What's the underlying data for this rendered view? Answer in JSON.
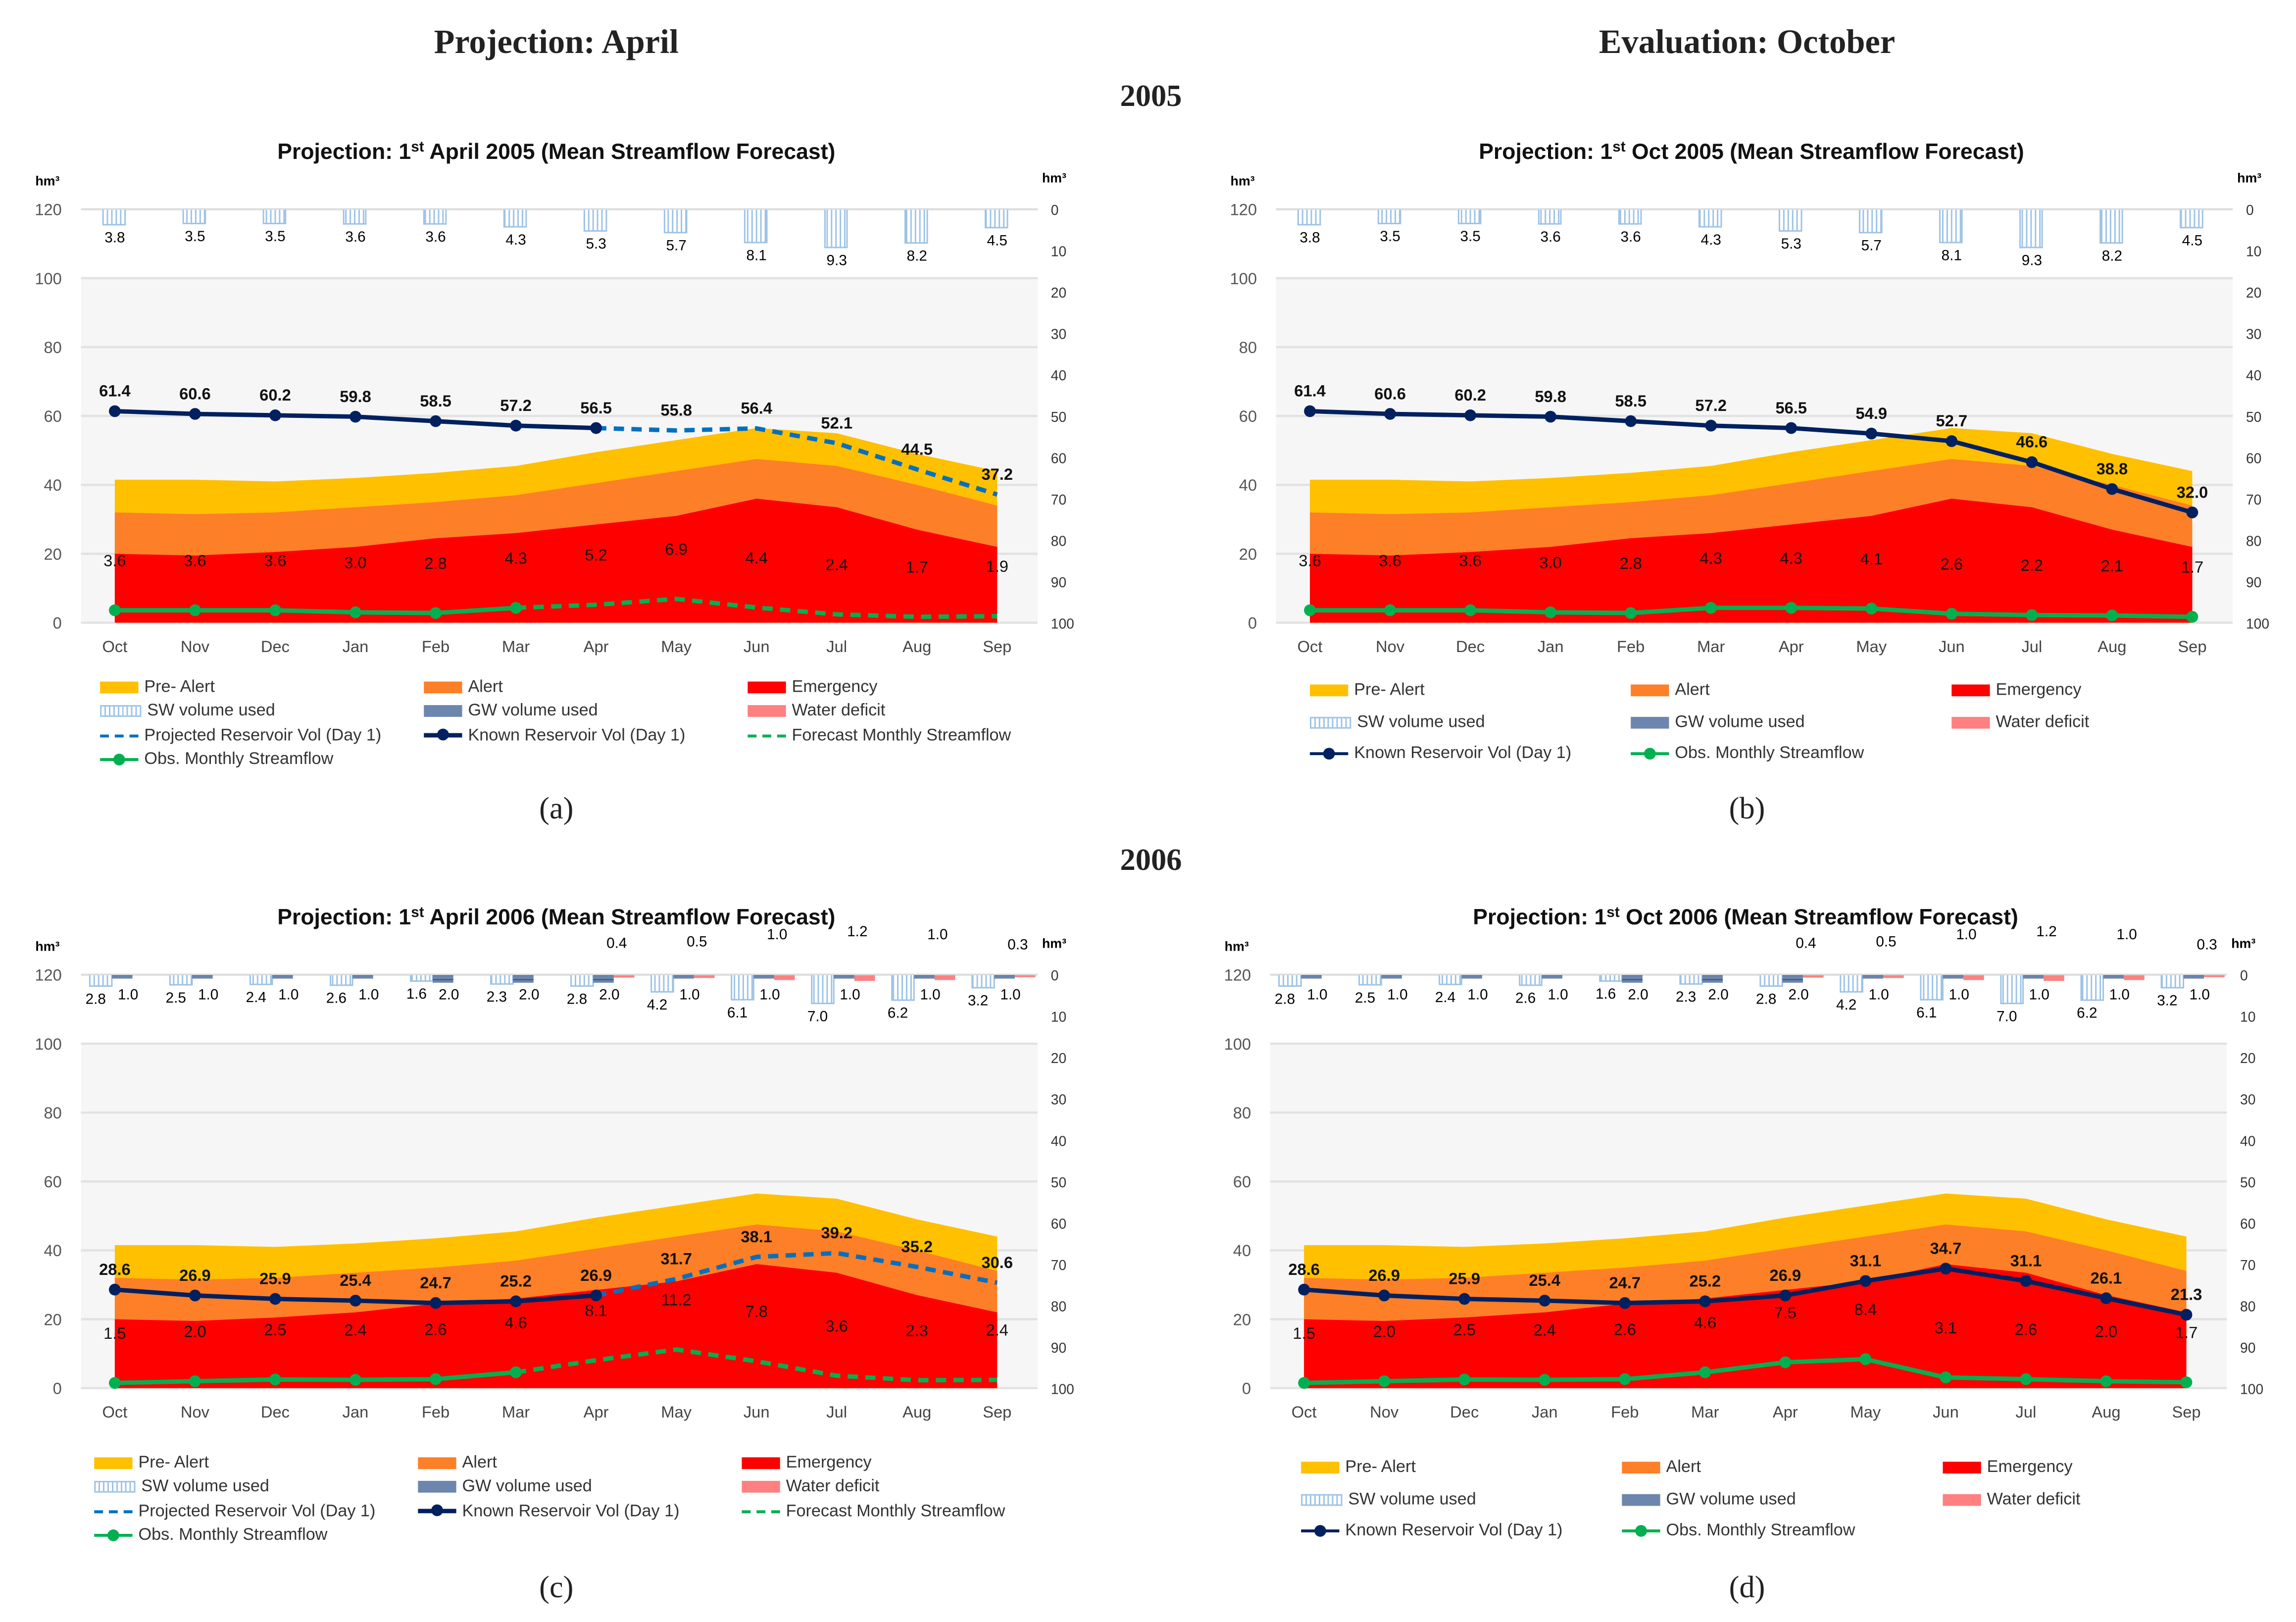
{
  "headings": {
    "left": "Projection: April",
    "right": "Evaluation: October",
    "year1": "2005",
    "year2": "2006"
  },
  "colors": {
    "pre_alert": "#ffc000",
    "alert": "#fd7f27",
    "emergency": "#ff0000",
    "sw": "#9dc3e6",
    "gw": "#6d86ad",
    "deficit": "#ff8080",
    "known_res": "#002060",
    "proj_res": "#0070c0",
    "streamflow": "#00b050"
  },
  "chart_data": [
    {
      "type": "area+line+bar",
      "caption": "(a)",
      "title_prefix": "Projection: 1",
      "title_sup": "st",
      "title_suffix": " April 2005 (Mean Streamflow Forecast)",
      "left_unit": "hm³",
      "right_unit": "hm³",
      "categories": [
        "Oct",
        "Nov",
        "Dec",
        "Jan",
        "Feb",
        "Mar",
        "Apr",
        "May",
        "Jun",
        "Jul",
        "Aug",
        "Sep"
      ],
      "left_ylim": [
        0,
        120
      ],
      "left_ticks": [
        "0",
        "20",
        "40",
        "60",
        "80",
        "100",
        "120"
      ],
      "right_ylim": [
        0,
        100
      ],
      "right_ticks": [
        "0",
        "10",
        "20",
        "30",
        "40",
        "50",
        "60",
        "70",
        "80",
        "90",
        "100"
      ],
      "zones": {
        "emergency": [
          20,
          19.5,
          20.5,
          22,
          24.5,
          26,
          28.5,
          31,
          36,
          33.5,
          27,
          22
        ],
        "alert": [
          32,
          31.5,
          32,
          33.5,
          35,
          37,
          40.5,
          44,
          47.5,
          45.5,
          40,
          34
        ],
        "pre_alert": [
          41.5,
          41.5,
          41,
          42,
          43.5,
          45.5,
          49.5,
          53,
          56.5,
          55,
          49,
          44
        ]
      },
      "sw_used": [
        3.8,
        3.5,
        3.5,
        3.6,
        3.6,
        4.3,
        5.3,
        5.7,
        8.1,
        9.3,
        8.2,
        4.5
      ],
      "gw_used": null,
      "water_deficit": null,
      "known_reservoir": [
        61.4,
        60.6,
        60.2,
        59.8,
        58.5,
        57.2,
        56.5,
        null,
        null,
        null,
        null,
        null
      ],
      "projected_reservoir": [
        null,
        null,
        null,
        null,
        null,
        null,
        56.5,
        55.8,
        56.4,
        52.1,
        44.5,
        37.2
      ],
      "obs_streamflow": [
        3.6,
        3.6,
        3.6,
        3.0,
        2.8,
        4.3,
        null,
        null,
        null,
        null,
        null,
        null
      ],
      "forecast_streamflow": [
        null,
        null,
        null,
        null,
        null,
        4.3,
        5.2,
        6.9,
        4.4,
        2.4,
        1.7,
        1.9
      ],
      "legend": [
        [
          "pre_alert",
          "Pre- Alert"
        ],
        [
          "alert",
          "Alert"
        ],
        [
          "emergency",
          "Emergency"
        ],
        [
          "sw",
          "SW volume used"
        ],
        [
          "gw",
          "GW volume used"
        ],
        [
          "deficit",
          "Water deficit"
        ],
        [
          "proj_res",
          "Projected Reservoir Vol (Day 1)"
        ],
        [
          "known_res",
          "Known Reservoir Vol (Day 1)"
        ],
        [
          "forecast",
          "Forecast Monthly Streamflow"
        ],
        [
          "streamflow",
          "Obs. Monthly Streamflow"
        ]
      ]
    },
    {
      "type": "area+line+bar",
      "caption": "(b)",
      "title_prefix": "Projection: 1",
      "title_sup": "st",
      "title_suffix": " Oct 2005 (Mean Streamflow Forecast)",
      "left_unit": "hm³",
      "right_unit": "hm³",
      "categories": [
        "Oct",
        "Nov",
        "Dec",
        "Jan",
        "Feb",
        "Mar",
        "Apr",
        "May",
        "Jun",
        "Jul",
        "Aug",
        "Sep"
      ],
      "left_ylim": [
        0,
        120
      ],
      "left_ticks": [
        "0",
        "20",
        "40",
        "60",
        "80",
        "100",
        "120"
      ],
      "right_ylim": [
        0,
        100
      ],
      "right_ticks": [
        "0",
        "10",
        "20",
        "30",
        "40",
        "50",
        "60",
        "70",
        "80",
        "90",
        "100"
      ],
      "zones": {
        "emergency": [
          20,
          19.5,
          20.5,
          22,
          24.5,
          26,
          28.5,
          31,
          36,
          33.5,
          27,
          22
        ],
        "alert": [
          32,
          31.5,
          32,
          33.5,
          35,
          37,
          40.5,
          44,
          47.5,
          45.5,
          40,
          34
        ],
        "pre_alert": [
          41.5,
          41.5,
          41,
          42,
          43.5,
          45.5,
          49.5,
          53,
          56.5,
          55,
          49,
          44
        ]
      },
      "sw_used": [
        3.8,
        3.5,
        3.5,
        3.6,
        3.6,
        4.3,
        5.3,
        5.7,
        8.1,
        9.3,
        8.2,
        4.5
      ],
      "gw_used": null,
      "water_deficit": null,
      "known_reservoir": [
        61.4,
        60.6,
        60.2,
        59.8,
        58.5,
        57.2,
        56.5,
        54.9,
        52.7,
        46.6,
        38.8,
        32.0
      ],
      "projected_reservoir": null,
      "obs_streamflow": [
        3.6,
        3.6,
        3.6,
        3.0,
        2.8,
        4.3,
        4.3,
        4.1,
        2.6,
        2.2,
        2.1,
        1.7
      ],
      "forecast_streamflow": null,
      "legend": [
        [
          "pre_alert",
          "Pre- Alert"
        ],
        [
          "alert",
          "Alert"
        ],
        [
          "emergency",
          "Emergency"
        ],
        [
          "sw",
          "SW volume used"
        ],
        [
          "gw",
          "GW volume used"
        ],
        [
          "deficit",
          "Water deficit"
        ],
        [
          "known_res",
          "Known Reservoir Vol (Day 1)"
        ],
        [
          "streamflow",
          "Obs. Monthly Streamflow"
        ]
      ]
    },
    {
      "type": "area+line+bar",
      "caption": "(c)",
      "title_prefix": "Projection: 1",
      "title_sup": "st",
      "title_suffix": " April 2006 (Mean Streamflow Forecast)",
      "left_unit": "hm³",
      "right_unit": "hm³",
      "categories": [
        "Oct",
        "Nov",
        "Dec",
        "Jan",
        "Feb",
        "Mar",
        "Apr",
        "May",
        "Jun",
        "Jul",
        "Aug",
        "Sep"
      ],
      "left_ylim": [
        0,
        120
      ],
      "left_ticks": [
        "0",
        "20",
        "40",
        "60",
        "80",
        "100",
        "120"
      ],
      "right_ylim": [
        0,
        100
      ],
      "right_ticks": [
        "0",
        "10",
        "20",
        "30",
        "40",
        "50",
        "60",
        "70",
        "80",
        "90",
        "100"
      ],
      "zones": {
        "emergency": [
          20,
          19.5,
          20.5,
          22,
          24.5,
          26,
          28.5,
          31,
          36,
          33.5,
          27,
          22
        ],
        "alert": [
          32,
          31.5,
          32,
          33.5,
          35,
          37,
          40.5,
          44,
          47.5,
          45.5,
          40,
          34
        ],
        "pre_alert": [
          41.5,
          41.5,
          41,
          42,
          43.5,
          45.5,
          49.5,
          53,
          56.5,
          55,
          49,
          44
        ]
      },
      "sw_used": [
        2.8,
        2.5,
        2.4,
        2.6,
        1.6,
        2.3,
        2.8,
        4.2,
        6.1,
        7.0,
        6.2,
        3.2
      ],
      "gw_used": [
        1.0,
        1.0,
        1.0,
        1.0,
        2.0,
        2.0,
        2.0,
        1.0,
        1.0,
        1.0,
        1.0,
        1.0
      ],
      "water_deficit": [
        null,
        null,
        null,
        null,
        null,
        null,
        0.4,
        0.5,
        1.0,
        1.2,
        1.0,
        0.3
      ],
      "known_reservoir": [
        28.6,
        26.9,
        25.9,
        25.4,
        24.7,
        25.2,
        26.9,
        null,
        null,
        null,
        null,
        null
      ],
      "projected_reservoir": [
        null,
        null,
        null,
        null,
        null,
        null,
        26.9,
        31.7,
        38.1,
        39.2,
        35.2,
        30.6
      ],
      "obs_streamflow": [
        1.5,
        2.0,
        2.5,
        2.4,
        2.6,
        4.6,
        null,
        null,
        null,
        null,
        null,
        null
      ],
      "forecast_streamflow": [
        null,
        null,
        null,
        null,
        null,
        4.6,
        8.1,
        11.2,
        7.8,
        3.6,
        2.3,
        2.4
      ],
      "legend": [
        [
          "pre_alert",
          "Pre- Alert"
        ],
        [
          "alert",
          "Alert"
        ],
        [
          "emergency",
          "Emergency"
        ],
        [
          "sw",
          "SW volume used"
        ],
        [
          "gw",
          "GW volume used"
        ],
        [
          "deficit",
          "Water deficit"
        ],
        [
          "proj_res",
          "Projected Reservoir Vol (Day 1)"
        ],
        [
          "known_res",
          "Known Reservoir Vol (Day 1)"
        ],
        [
          "forecast",
          "Forecast Monthly Streamflow"
        ],
        [
          "streamflow",
          "Obs. Monthly Streamflow"
        ]
      ]
    },
    {
      "type": "area+line+bar",
      "caption": "(d)",
      "title_prefix": "Projection: 1",
      "title_sup": "st",
      "title_suffix": " Oct 2006 (Mean Streamflow Forecast)",
      "left_unit": "hm³",
      "right_unit": "hm³",
      "categories": [
        "Oct",
        "Nov",
        "Dec",
        "Jan",
        "Feb",
        "Mar",
        "Apr",
        "May",
        "Jun",
        "Jul",
        "Aug",
        "Sep"
      ],
      "left_ylim": [
        0,
        120
      ],
      "left_ticks": [
        "0",
        "20",
        "40",
        "60",
        "80",
        "100",
        "120"
      ],
      "right_ylim": [
        0,
        100
      ],
      "right_ticks": [
        "0",
        "10",
        "20",
        "30",
        "40",
        "50",
        "60",
        "70",
        "80",
        "90",
        "100"
      ],
      "zones": {
        "emergency": [
          20,
          19.5,
          20.5,
          22,
          24.5,
          26,
          28.5,
          31,
          36,
          33.5,
          27,
          22
        ],
        "alert": [
          32,
          31.5,
          32,
          33.5,
          35,
          37,
          40.5,
          44,
          47.5,
          45.5,
          40,
          34
        ],
        "pre_alert": [
          41.5,
          41.5,
          41,
          42,
          43.5,
          45.5,
          49.5,
          53,
          56.5,
          55,
          49,
          44
        ]
      },
      "sw_used": [
        2.8,
        2.5,
        2.4,
        2.6,
        1.6,
        2.3,
        2.8,
        4.2,
        6.1,
        7.0,
        6.2,
        3.2
      ],
      "gw_used": [
        1.0,
        1.0,
        1.0,
        1.0,
        2.0,
        2.0,
        2.0,
        1.0,
        1.0,
        1.0,
        1.0,
        1.0
      ],
      "water_deficit": [
        null,
        null,
        null,
        null,
        null,
        null,
        0.4,
        0.5,
        1.0,
        1.2,
        1.0,
        0.3
      ],
      "known_reservoir": [
        28.6,
        26.9,
        25.9,
        25.4,
        24.7,
        25.2,
        26.9,
        31.1,
        34.7,
        31.1,
        26.1,
        21.3
      ],
      "projected_reservoir": null,
      "obs_streamflow": [
        1.5,
        2.0,
        2.5,
        2.4,
        2.6,
        4.6,
        7.5,
        8.4,
        3.1,
        2.6,
        2.0,
        1.7
      ],
      "forecast_streamflow": null,
      "legend": [
        [
          "pre_alert",
          "Pre- Alert"
        ],
        [
          "alert",
          "Alert"
        ],
        [
          "emergency",
          "Emergency"
        ],
        [
          "sw",
          "SW volume used"
        ],
        [
          "gw",
          "GW volume used"
        ],
        [
          "deficit",
          "Water deficit"
        ],
        [
          "known_res",
          "Known Reservoir Vol (Day 1)"
        ],
        [
          "streamflow",
          "Obs. Monthly Streamflow"
        ]
      ]
    }
  ]
}
